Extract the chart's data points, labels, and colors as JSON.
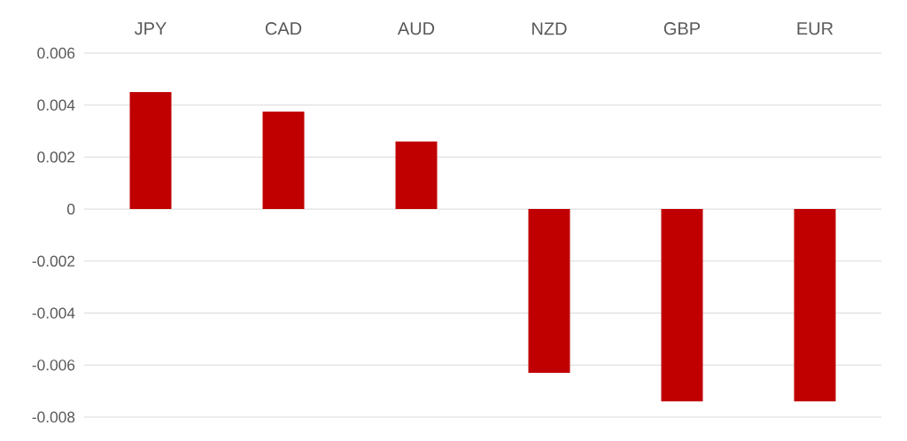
{
  "chart_data": {
    "type": "bar",
    "categories": [
      "JPY",
      "CAD",
      "AUD",
      "NZD",
      "GBP",
      "EUR"
    ],
    "values": [
      0.0045,
      0.00375,
      0.0026,
      -0.0063,
      -0.0074,
      -0.0074
    ],
    "color": "#c00000",
    "ylim": [
      -0.008,
      0.006
    ],
    "yticks": [
      -0.008,
      -0.006,
      -0.004,
      -0.002,
      0,
      0.002,
      0.004,
      0.006
    ],
    "grid": "y"
  }
}
